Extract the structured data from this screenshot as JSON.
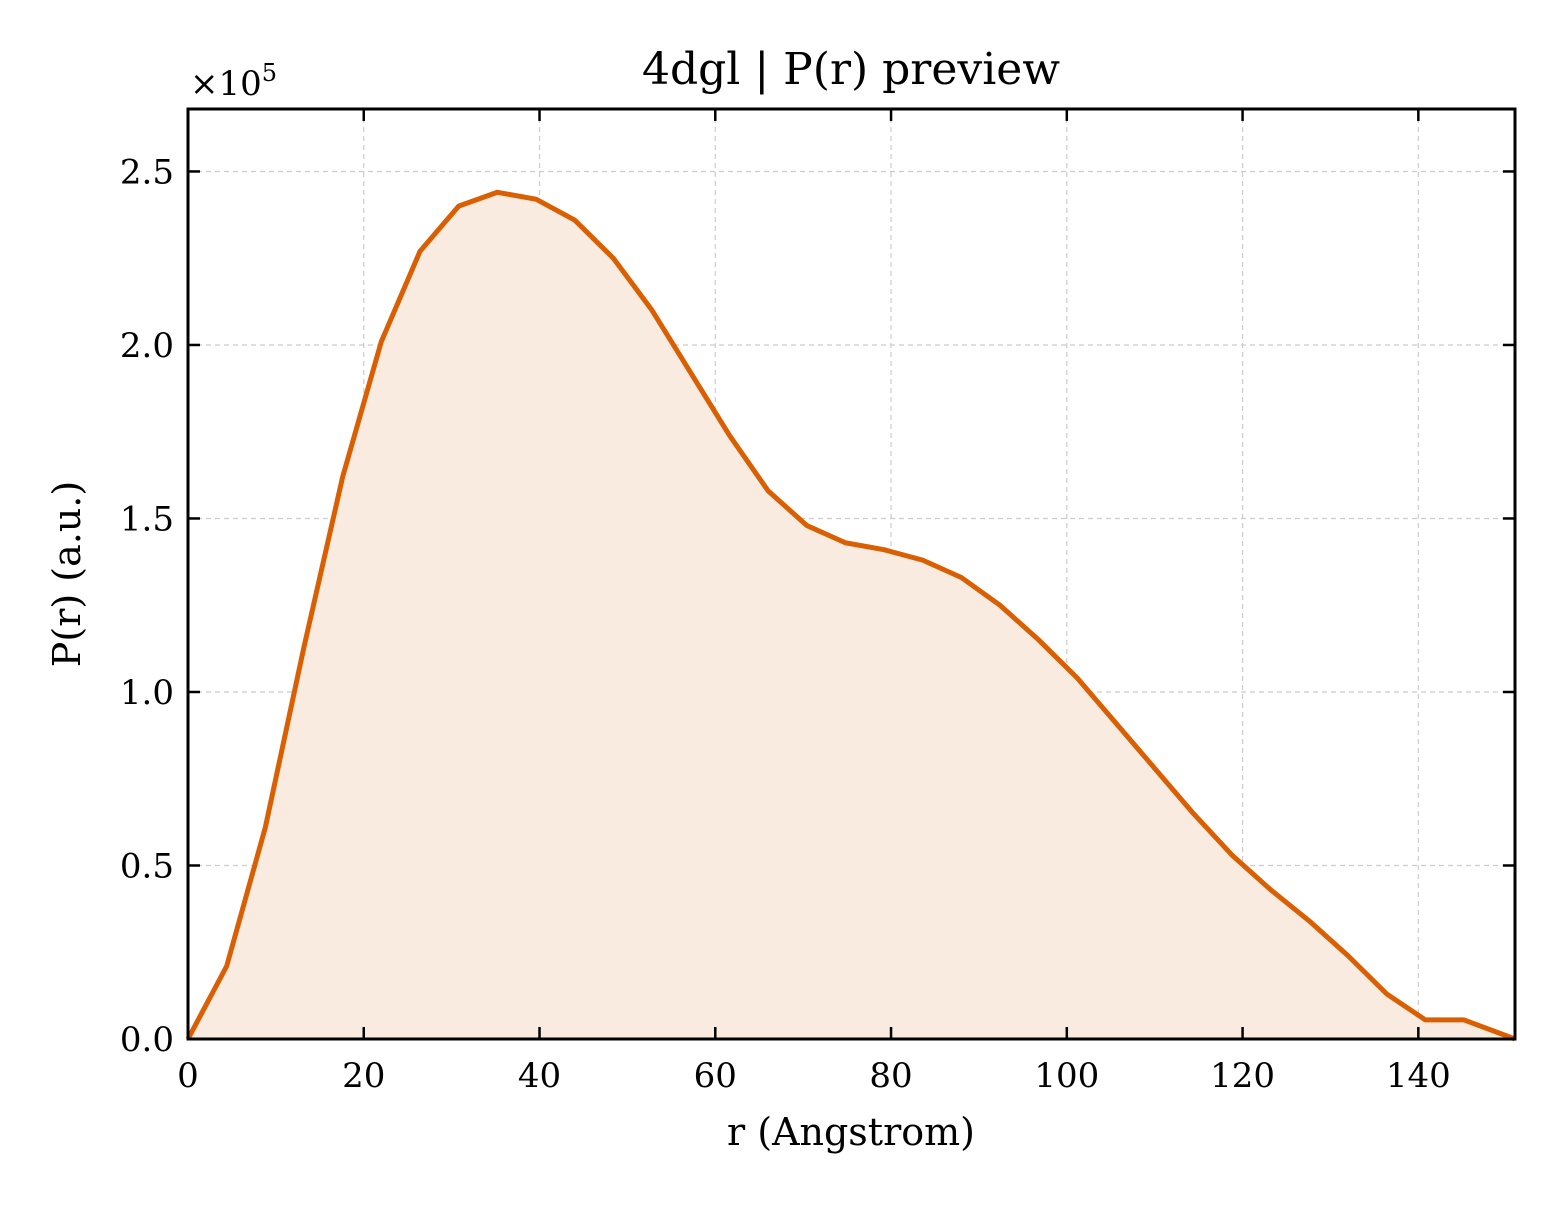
{
  "chart_data": {
    "type": "area",
    "title": "4dgl | P(r) preview",
    "xlabel": "r (Angstrom)",
    "ylabel": "P(r) (a.u.)",
    "y_multiplier": {
      "base": "×10",
      "exponent": "5"
    },
    "xlim": [
      0,
      151
    ],
    "ylim": [
      0,
      2.68
    ],
    "y_scale_factor": 100000,
    "x_ticks": [
      0,
      20,
      40,
      60,
      80,
      100,
      120,
      140
    ],
    "x_tick_labels": [
      "0",
      "20",
      "40",
      "60",
      "80",
      "100",
      "120",
      "140"
    ],
    "y_ticks": [
      0,
      0.5,
      1.0,
      1.5,
      2.0,
      2.5
    ],
    "y_tick_labels": [
      "0.0",
      "0.5",
      "1.0",
      "1.5",
      "2.0",
      "2.5"
    ],
    "grid": true,
    "legend": "none",
    "series": [
      {
        "color": "#d95f02",
        "fill_color": "#f9ebe0",
        "x": [
          0,
          4.4,
          8.8,
          13.2,
          17.6,
          22.0,
          26.4,
          30.8,
          35.2,
          39.6,
          44.0,
          48.4,
          52.8,
          57.2,
          61.6,
          66.0,
          70.4,
          74.8,
          79.2,
          83.6,
          88.0,
          92.4,
          96.8,
          101.2,
          105.6,
          110.0,
          114.4,
          118.8,
          123.2,
          127.6,
          132.0,
          136.4,
          140.8,
          145.2,
          151
        ],
        "y": [
          0.0,
          0.21,
          0.61,
          1.13,
          1.62,
          2.01,
          2.27,
          2.4,
          2.44,
          2.42,
          2.36,
          2.25,
          2.1,
          1.92,
          1.74,
          1.58,
          1.48,
          1.43,
          1.41,
          1.38,
          1.33,
          1.25,
          1.15,
          1.04,
          0.91,
          0.78,
          0.65,
          0.53,
          0.43,
          0.34,
          0.24,
          0.13,
          0.055,
          0.055,
          0.0
        ]
      }
    ]
  }
}
